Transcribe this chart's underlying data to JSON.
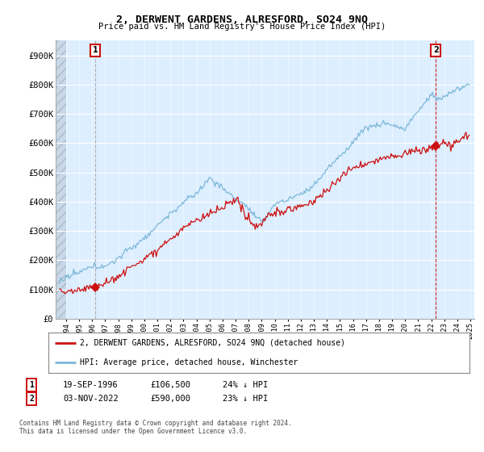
{
  "title": "2, DERWENT GARDENS, ALRESFORD, SO24 9NQ",
  "subtitle": "Price paid vs. HM Land Registry's House Price Index (HPI)",
  "ylabel_ticks": [
    "£0",
    "£100K",
    "£200K",
    "£300K",
    "£400K",
    "£500K",
    "£600K",
    "£700K",
    "£800K",
    "£900K"
  ],
  "ytick_values": [
    0,
    100000,
    200000,
    300000,
    400000,
    500000,
    600000,
    700000,
    800000,
    900000
  ],
  "ylim": [
    0,
    950000
  ],
  "xlim_start": 1993.7,
  "xlim_end": 2025.8,
  "hpi_color": "#7db8d8",
  "price_color": "#cc1111",
  "sale1_price": 106500,
  "sale1_x": 1996.72,
  "sale2_price": 590000,
  "sale2_x": 2022.84,
  "legend_label_price": "2, DERWENT GARDENS, ALRESFORD, SO24 9NQ (detached house)",
  "legend_label_hpi": "HPI: Average price, detached house, Winchester",
  "copyright": "Contains HM Land Registry data © Crown copyright and database right 2024.\nThis data is licensed under the Open Government Licence v3.0.",
  "background_color": "#ffffff",
  "plot_bg_color": "#ddeeff"
}
